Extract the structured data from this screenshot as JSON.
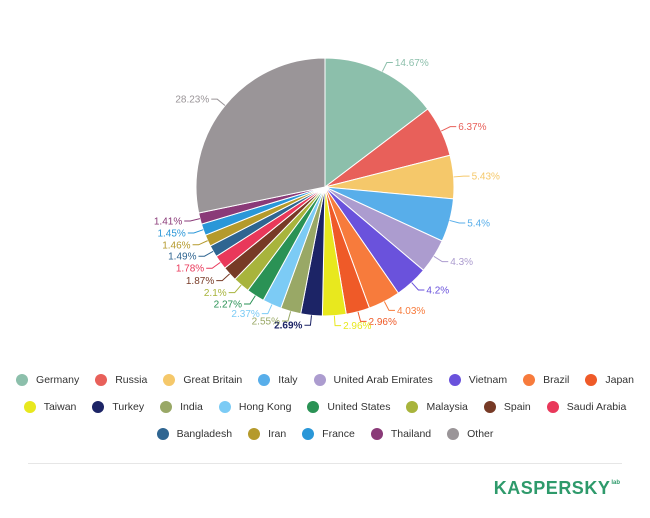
{
  "chart_data": {
    "type": "pie",
    "title": "",
    "slices": [
      {
        "name": "Germany",
        "value": 14.67,
        "label": "14.67%",
        "color": "#8cbfab"
      },
      {
        "name": "Russia",
        "value": 6.37,
        "label": "6.37%",
        "color": "#e8605a"
      },
      {
        "name": "Great Britain",
        "value": 5.43,
        "label": "5.43%",
        "color": "#f5c86a"
      },
      {
        "name": "Italy",
        "value": 5.4,
        "label": "5.4%",
        "color": "#58aeea"
      },
      {
        "name": "United Arab Emirates",
        "value": 4.3,
        "label": "4.3%",
        "color": "#ac9ccf"
      },
      {
        "name": "Vietnam",
        "value": 4.2,
        "label": "4.2%",
        "color": "#6a52dc"
      },
      {
        "name": "Brazil",
        "value": 4.03,
        "label": "4.03%",
        "color": "#f77b3c"
      },
      {
        "name": "Japan",
        "value": 2.96,
        "label": "2.96%",
        "color": "#ef5a28"
      },
      {
        "name": "Taiwan",
        "value": 2.96,
        "label": "2.96%",
        "color": "#e8e81e"
      },
      {
        "name": "Turkey",
        "value": 2.69,
        "label": "2.69%",
        "color": "#1c2466"
      },
      {
        "name": "India",
        "value": 2.55,
        "label": "2.55%",
        "color": "#99a866"
      },
      {
        "name": "Hong Kong",
        "value": 2.37,
        "label": "2.37%",
        "color": "#7ccbf5"
      },
      {
        "name": "United States",
        "value": 2.27,
        "label": "2.27%",
        "color": "#2a9255"
      },
      {
        "name": "Malaysia",
        "value": 2.1,
        "label": "2.1%",
        "color": "#a8b43c"
      },
      {
        "name": "Spain",
        "value": 1.87,
        "label": "1.87%",
        "color": "#773a26"
      },
      {
        "name": "Saudi Arabia",
        "value": 1.78,
        "label": "1.78%",
        "color": "#e9385a"
      },
      {
        "name": "Bangladesh",
        "value": 1.49,
        "label": "1.49%",
        "color": "#2f6591"
      },
      {
        "name": "Iran",
        "value": 1.46,
        "label": "1.46%",
        "color": "#b59a2c"
      },
      {
        "name": "France",
        "value": 1.45,
        "label": "1.45%",
        "color": "#2a97d8"
      },
      {
        "name": "Thailand",
        "value": 1.41,
        "label": "1.41%",
        "color": "#8a3a78"
      },
      {
        "name": "Other",
        "value": 28.23,
        "label": "28.23%",
        "color": "#9a9598"
      }
    ],
    "legend_position": "bottom",
    "bold_label": "Turkey"
  },
  "legend": {
    "rows": [
      [
        "Germany",
        "Russia",
        "Great Britain",
        "Italy",
        "United Arab Emirates",
        "Vietnam",
        "Brazil",
        "Japan"
      ],
      [
        "Taiwan",
        "Turkey",
        "India",
        "Hong Kong",
        "United States",
        "Malaysia",
        "Spain",
        "Saudi Arabia"
      ],
      [
        "Bangladesh",
        "Iran",
        "France",
        "Thailand",
        "Other"
      ]
    ]
  },
  "brand": {
    "logo_text": "KASPERSKY",
    "logo_suffix": "lab",
    "color": "#2e9a6b"
  }
}
